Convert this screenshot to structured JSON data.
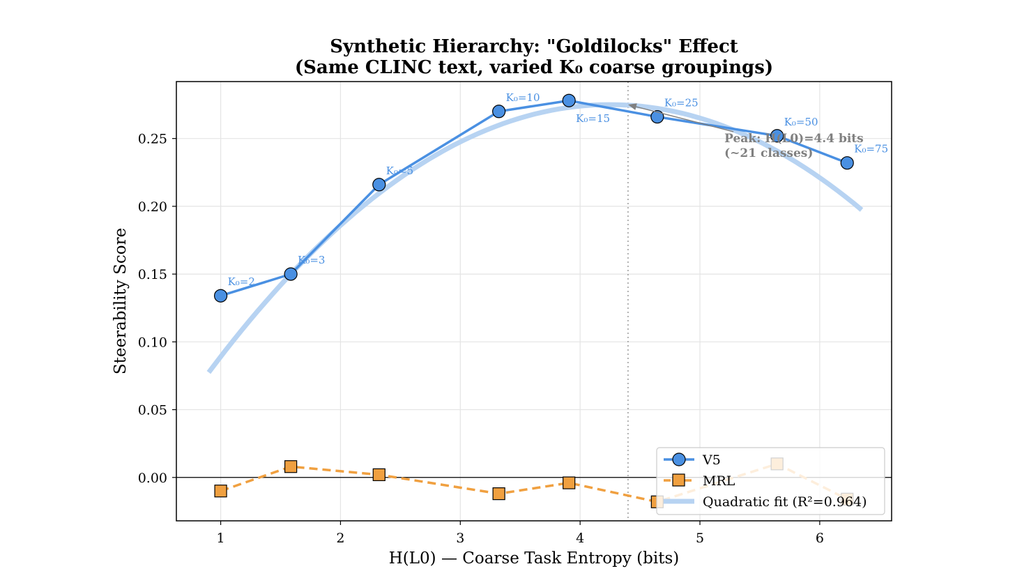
{
  "chart_data": {
    "type": "line",
    "title": "Synthetic Hierarchy: \"Goldilocks\" Effect",
    "subtitle": "(Same CLINC text, varied K₀ coarse groupings)",
    "xlabel": "H(L0) — Coarse Task Entropy (bits)",
    "ylabel": "Steerability Score",
    "xlim": [
      0.63,
      6.6
    ],
    "ylim": [
      -0.032,
      0.292
    ],
    "xticks": [
      1,
      2,
      3,
      4,
      5,
      6
    ],
    "xtick_labels": [
      "1",
      "2",
      "3",
      "4",
      "5",
      "6"
    ],
    "yticks": [
      0.0,
      0.05,
      0.1,
      0.15,
      0.2,
      0.25
    ],
    "ytick_labels": [
      "0.00",
      "0.05",
      "0.10",
      "0.15",
      "0.20",
      "0.25"
    ],
    "grid": true,
    "zero_line": 0,
    "series": [
      {
        "name": "V5",
        "color": "#4a90e2",
        "marker": "circle",
        "linestyle": "solid",
        "x": [
          1.0,
          1.585,
          2.322,
          3.322,
          3.907,
          4.644,
          5.644,
          6.229
        ],
        "y": [
          0.134,
          0.15,
          0.216,
          0.27,
          0.278,
          0.266,
          0.252,
          0.232
        ],
        "point_labels": [
          "K₀=2",
          "K₀=3",
          "K₀=5",
          "K₀=10",
          "K₀=15",
          "K₀=25",
          "K₀=50",
          "K₀=75"
        ]
      },
      {
        "name": "MRL",
        "color": "#f0a040",
        "marker": "square",
        "linestyle": "dashed",
        "x": [
          1.0,
          1.585,
          2.322,
          3.322,
          3.907,
          4.644,
          5.644,
          6.229
        ],
        "y": [
          -0.01,
          0.008,
          0.002,
          -0.012,
          -0.004,
          -0.018,
          0.01,
          -0.016
        ]
      }
    ],
    "fit": {
      "name": "Quadratic fit (R²=0.964)",
      "color": "#b7d3f2",
      "x_range": [
        0.9,
        6.35
      ],
      "peak_x": 4.25,
      "peak_y": 0.275,
      "curvature": -0.0176
    },
    "peak_line_x": 4.4,
    "annotation": {
      "line1": "Peak: H(L0)=4.4 bits",
      "line2": "(~21 classes)",
      "color": "#808080",
      "arrow_from": [
        5.28,
        0.255
      ],
      "arrow_to": [
        4.4,
        0.275
      ]
    },
    "legend_position": "lower-right"
  }
}
